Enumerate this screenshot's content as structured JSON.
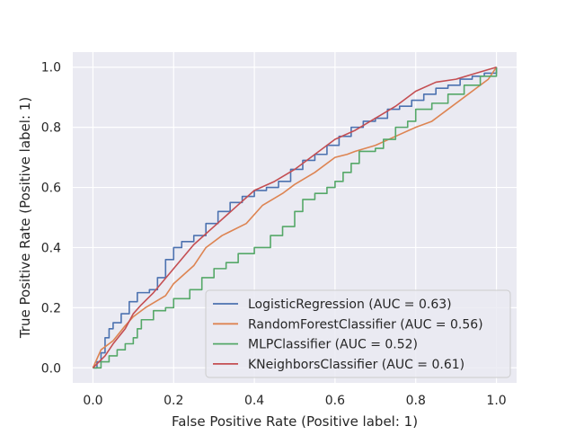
{
  "chart_data": {
    "type": "line",
    "title": "",
    "xlabel": "False Positive Rate (Positive label: 1)",
    "ylabel": "True Positive Rate (Positive label: 1)",
    "xlim": [
      -0.05,
      1.05
    ],
    "ylim": [
      -0.05,
      1.05
    ],
    "xticks": [
      "0.0",
      "0.2",
      "0.4",
      "0.6",
      "0.8",
      "1.0"
    ],
    "yticks": [
      "0.0",
      "0.2",
      "0.4",
      "0.6",
      "0.8",
      "1.0"
    ],
    "grid": true,
    "legend_position": "lower-right",
    "series": [
      {
        "name": "LogisticRegression (AUC = 0.63)",
        "color": "#4c72b0",
        "step": true,
        "x": [
          0,
          0.01,
          0.02,
          0.03,
          0.04,
          0.05,
          0.07,
          0.09,
          0.11,
          0.14,
          0.16,
          0.18,
          0.2,
          0.22,
          0.25,
          0.28,
          0.31,
          0.34,
          0.37,
          0.4,
          0.43,
          0.46,
          0.49,
          0.52,
          0.55,
          0.58,
          0.61,
          0.64,
          0.67,
          0.7,
          0.73,
          0.76,
          0.79,
          0.82,
          0.85,
          0.88,
          0.91,
          0.94,
          0.97,
          1.0
        ],
        "y": [
          0,
          0.02,
          0.05,
          0.1,
          0.13,
          0.15,
          0.18,
          0.22,
          0.25,
          0.26,
          0.3,
          0.36,
          0.4,
          0.42,
          0.44,
          0.48,
          0.52,
          0.55,
          0.57,
          0.59,
          0.6,
          0.62,
          0.66,
          0.69,
          0.71,
          0.74,
          0.77,
          0.8,
          0.82,
          0.83,
          0.86,
          0.87,
          0.89,
          0.91,
          0.93,
          0.94,
          0.96,
          0.97,
          0.98,
          1.0
        ]
      },
      {
        "name": "RandomForestClassifier (AUC = 0.56)",
        "color": "#dd8452",
        "step": false,
        "x": [
          0,
          0.01,
          0.02,
          0.05,
          0.08,
          0.1,
          0.13,
          0.18,
          0.2,
          0.25,
          0.28,
          0.32,
          0.38,
          0.42,
          0.47,
          0.5,
          0.55,
          0.6,
          0.63,
          0.65,
          0.7,
          0.75,
          0.8,
          0.84,
          0.88,
          0.92,
          0.95,
          0.98,
          1.0
        ],
        "y": [
          0,
          0.03,
          0.06,
          0.09,
          0.14,
          0.17,
          0.2,
          0.24,
          0.28,
          0.34,
          0.4,
          0.44,
          0.48,
          0.54,
          0.58,
          0.61,
          0.65,
          0.7,
          0.71,
          0.72,
          0.74,
          0.77,
          0.8,
          0.82,
          0.86,
          0.9,
          0.93,
          0.96,
          1.0
        ]
      },
      {
        "name": "MLPClassifier (AUC = 0.52)",
        "color": "#55a868",
        "step": true,
        "x": [
          0,
          0.02,
          0.04,
          0.06,
          0.08,
          0.1,
          0.11,
          0.12,
          0.15,
          0.18,
          0.2,
          0.24,
          0.27,
          0.3,
          0.33,
          0.36,
          0.4,
          0.44,
          0.47,
          0.5,
          0.52,
          0.55,
          0.58,
          0.6,
          0.62,
          0.64,
          0.66,
          0.7,
          0.72,
          0.75,
          0.78,
          0.8,
          0.84,
          0.88,
          0.92,
          0.96,
          1.0
        ],
        "y": [
          0,
          0.02,
          0.04,
          0.06,
          0.08,
          0.1,
          0.13,
          0.16,
          0.19,
          0.2,
          0.23,
          0.26,
          0.3,
          0.33,
          0.35,
          0.38,
          0.4,
          0.44,
          0.47,
          0.52,
          0.56,
          0.58,
          0.6,
          0.62,
          0.65,
          0.68,
          0.72,
          0.73,
          0.76,
          0.8,
          0.82,
          0.86,
          0.88,
          0.91,
          0.94,
          0.97,
          1.0
        ]
      },
      {
        "name": "KNeighborsClassifier (AUC = 0.61)",
        "color": "#c44e52",
        "step": false,
        "x": [
          0,
          0.03,
          0.05,
          0.08,
          0.1,
          0.12,
          0.15,
          0.2,
          0.25,
          0.3,
          0.35,
          0.4,
          0.45,
          0.5,
          0.55,
          0.6,
          0.65,
          0.7,
          0.75,
          0.8,
          0.85,
          0.9,
          0.95,
          1.0
        ],
        "y": [
          0,
          0.04,
          0.08,
          0.13,
          0.18,
          0.21,
          0.25,
          0.33,
          0.41,
          0.47,
          0.53,
          0.59,
          0.62,
          0.66,
          0.71,
          0.76,
          0.79,
          0.83,
          0.87,
          0.92,
          0.95,
          0.96,
          0.98,
          1.0
        ]
      }
    ]
  }
}
